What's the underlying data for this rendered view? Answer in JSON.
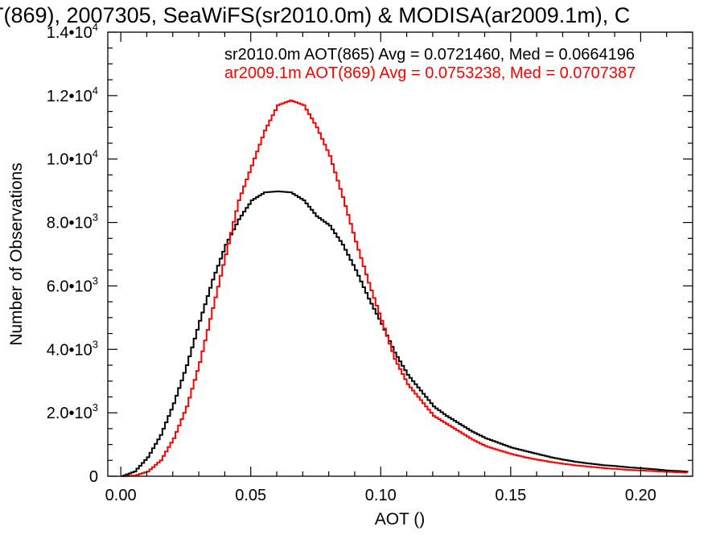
{
  "chart_data": {
    "type": "line",
    "title": "T(869), 2007305, SeaWiFS(sr2010.0m) & MODISA(ar2009.1m), C",
    "xlabel": "AOT ()",
    "ylabel": "Number of Observations",
    "xlim": [
      -0.005,
      0.22
    ],
    "ylim": [
      0,
      14000
    ],
    "x_ticks": [
      0.0,
      0.05,
      0.1,
      0.15,
      0.2
    ],
    "x_tick_labels": [
      "0.00",
      "0.05",
      "0.10",
      "0.15",
      "0.20"
    ],
    "y_ticks": [
      0,
      2000,
      4000,
      6000,
      8000,
      10000,
      12000,
      14000
    ],
    "y_tick_labels": [
      {
        "mant": "0",
        "exp": ""
      },
      {
        "mant": "2.0•10",
        "exp": "3"
      },
      {
        "mant": "4.0•10",
        "exp": "3"
      },
      {
        "mant": "6.0•10",
        "exp": "3"
      },
      {
        "mant": "8.0•10",
        "exp": "3"
      },
      {
        "mant": "1.0•10",
        "exp": "4"
      },
      {
        "mant": "1.2•10",
        "exp": "4"
      },
      {
        "mant": "1.4•10",
        "exp": "4"
      }
    ],
    "grid": false,
    "legend_position": "top-right",
    "series": [
      {
        "name": "sr2010.0m",
        "label": "sr2010.0m AOT(865) Avg = 0.0721460, Med = 0.0664196",
        "color": "#000000",
        "x": [
          0.0,
          0.005,
          0.01,
          0.015,
          0.02,
          0.025,
          0.03,
          0.035,
          0.04,
          0.045,
          0.05,
          0.055,
          0.06,
          0.065,
          0.07,
          0.075,
          0.08,
          0.085,
          0.09,
          0.095,
          0.1,
          0.105,
          0.11,
          0.115,
          0.12,
          0.125,
          0.13,
          0.135,
          0.14,
          0.145,
          0.15,
          0.155,
          0.16,
          0.165,
          0.17,
          0.175,
          0.18,
          0.185,
          0.19,
          0.195,
          0.2,
          0.205,
          0.21,
          0.215,
          0.218
        ],
        "y": [
          0,
          150,
          600,
          1300,
          2300,
          3500,
          4900,
          6200,
          7300,
          8100,
          8700,
          8950,
          8980,
          8950,
          8700,
          8200,
          7900,
          7300,
          6500,
          5600,
          4800,
          3900,
          3200,
          2700,
          2200,
          1900,
          1650,
          1400,
          1200,
          1050,
          900,
          800,
          700,
          600,
          520,
          450,
          400,
          350,
          320,
          280,
          250,
          220,
          180,
          160,
          140
        ]
      },
      {
        "name": "ar2009.1m",
        "label": "ar2009.1m AOT(869) Avg = 0.0753238, Med = 0.0707387",
        "color": "#ff0000",
        "x": [
          0.0,
          0.005,
          0.01,
          0.015,
          0.02,
          0.025,
          0.03,
          0.035,
          0.04,
          0.045,
          0.05,
          0.055,
          0.06,
          0.065,
          0.07,
          0.075,
          0.08,
          0.085,
          0.09,
          0.095,
          0.1,
          0.105,
          0.11,
          0.115,
          0.12,
          0.125,
          0.13,
          0.135,
          0.14,
          0.145,
          0.15,
          0.155,
          0.16,
          0.165,
          0.17,
          0.175,
          0.18,
          0.185,
          0.19,
          0.195,
          0.2,
          0.205,
          0.21,
          0.215,
          0.218
        ],
        "y": [
          0,
          20,
          150,
          500,
          1200,
          2200,
          3600,
          5300,
          7000,
          8700,
          9800,
          10900,
          11700,
          11850,
          11700,
          11000,
          10100,
          8800,
          7400,
          6100,
          4900,
          3700,
          2900,
          2400,
          1900,
          1650,
          1400,
          1150,
          950,
          820,
          700,
          600,
          520,
          450,
          390,
          340,
          300,
          260,
          230,
          200,
          180,
          160,
          140,
          120,
          110
        ]
      }
    ]
  }
}
